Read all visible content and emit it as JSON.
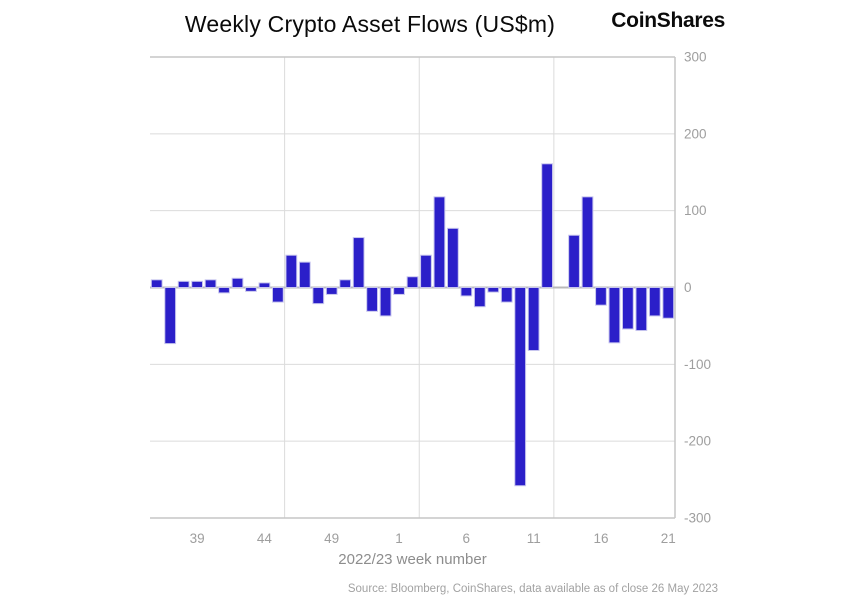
{
  "header": {
    "title": "Weekly Crypto Asset Flows (US$m)",
    "logo": "CoinShares"
  },
  "footer": {
    "source": "Source: Bloomberg, CoinShares, data available as of close 26 May 2023"
  },
  "chart_data": {
    "type": "bar",
    "title": "Weekly Crypto Asset Flows (US$m)",
    "xlabel": "2022/23 week number",
    "ylabel": "",
    "ylim": [
      -300,
      300
    ],
    "grid": true,
    "legend": false,
    "y_ticks": [
      300,
      200,
      100,
      0,
      -100,
      -200,
      -300
    ],
    "x_tick_labels": [
      "39",
      "44",
      "49",
      "1",
      "6",
      "11",
      "16",
      "21"
    ],
    "x_tick_slots": [
      3,
      8,
      13,
      18,
      23,
      28,
      33,
      38
    ],
    "gridline_boundaries": [
      10,
      20,
      30
    ],
    "categories": [
      "36",
      "37",
      "38",
      "39",
      "40",
      "41",
      "42",
      "43",
      "44",
      "45",
      "46",
      "47",
      "48",
      "49",
      "50",
      "51",
      "52",
      "53",
      "1",
      "2",
      "3",
      "4",
      "5",
      "6",
      "7",
      "8",
      "9",
      "10",
      "11",
      "12",
      "13",
      "14",
      "15",
      "16",
      "17",
      "18",
      "19",
      "20",
      "21"
    ],
    "values": [
      10,
      -73,
      8,
      8,
      10,
      -7,
      12,
      -5,
      6,
      -19,
      42,
      33,
      -21,
      -9,
      10,
      65,
      -31,
      -37,
      -9,
      14,
      42,
      118,
      77,
      -11,
      -25,
      -6,
      -19,
      -258,
      -82,
      161,
      0,
      68,
      118,
      -23,
      -72,
      -54,
      -56,
      -37,
      -40
    ],
    "colors": {
      "bar": "#2b1fc9",
      "bar_edge": "#c7c5ee",
      "grid": "#dbdbdb",
      "border": "#c6c6c6",
      "zero_line": "#b9b9b9",
      "tick_label": "#9e9e9e"
    }
  }
}
